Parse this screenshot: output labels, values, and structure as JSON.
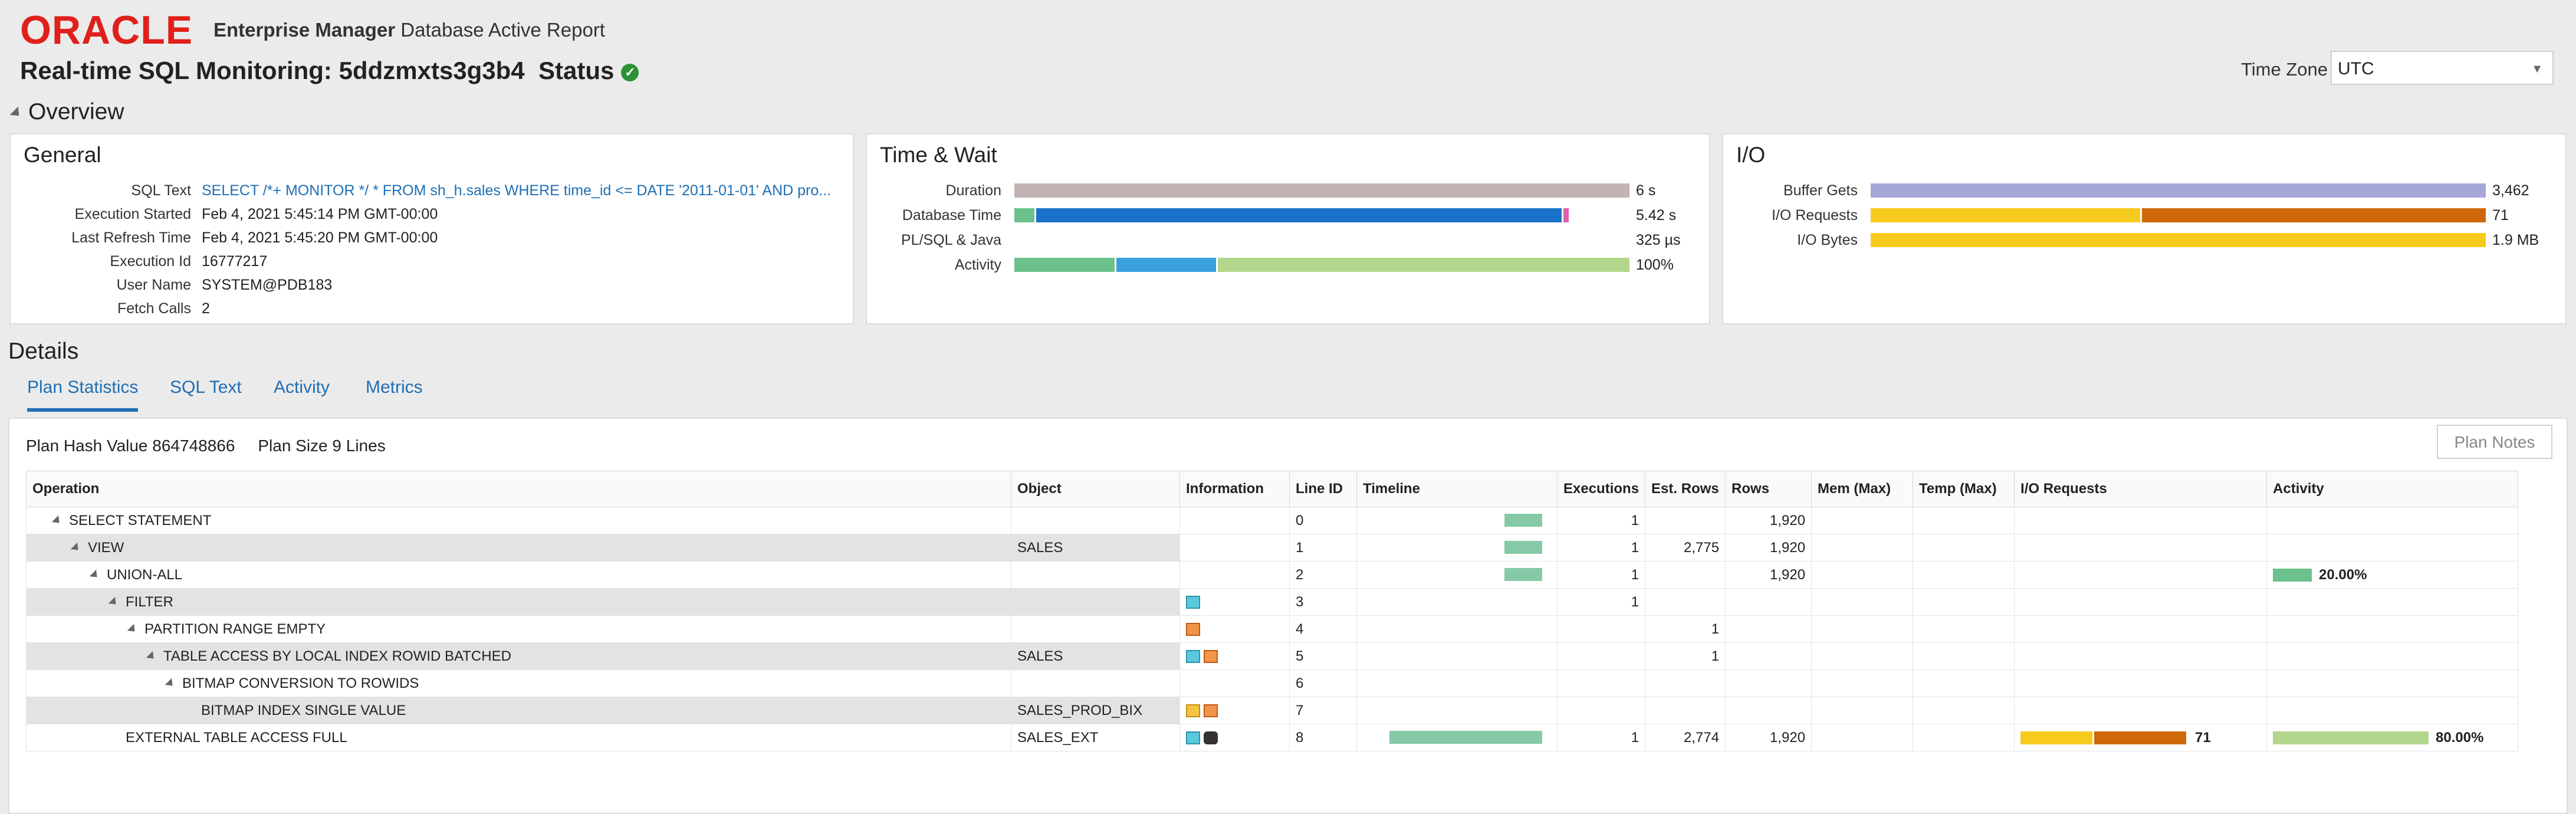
{
  "brand": {
    "logo_text": "ORACLE",
    "product_name": "Enterprise Manager",
    "report_name": "Database Active Report"
  },
  "page": {
    "title": "Real-time SQL Monitoring: 5ddzmxts3g3b4",
    "status_label": "Status",
    "status_icon": "check-circle-icon"
  },
  "timezone": {
    "label": "Time Zone",
    "value": "UTC"
  },
  "overview": {
    "heading": "Overview",
    "general": {
      "title": "General",
      "rows": [
        {
          "label": "SQL Text",
          "value": "SELECT /*+ MONITOR */ * FROM sh_h.sales WHERE time_id <= DATE '2011-01-01' AND pro..."
        },
        {
          "label": "Execution Started",
          "value": "Feb 4, 2021 5:45:14 PM GMT-00:00"
        },
        {
          "label": "Last Refresh Time",
          "value": "Feb 4, 2021 5:45:20 PM GMT-00:00"
        },
        {
          "label": "Execution Id",
          "value": "16777217"
        },
        {
          "label": "User Name",
          "value": "SYSTEM@PDB183"
        },
        {
          "label": "Fetch Calls",
          "value": "2"
        }
      ]
    },
    "time_wait": {
      "title": "Time & Wait",
      "rows": [
        {
          "label": "Duration",
          "value": "6 s",
          "segments": [
            {
              "fraction": 1.0,
              "color": "#c4b3b3"
            }
          ]
        },
        {
          "label": "Database Time",
          "value": "5.42 s",
          "segments": [
            {
              "fraction": 0.035,
              "color": "#6cc08b"
            },
            {
              "fraction": 0.855,
              "color": "#1a73c9"
            },
            {
              "fraction": 0.012,
              "color": "#e05fa8"
            }
          ]
        },
        {
          "label": "PL/SQL & Java",
          "value": "325 µs",
          "segments": []
        },
        {
          "label": "Activity",
          "value": "100%",
          "segments": [
            {
              "fraction": 0.165,
              "color": "#6cc08b"
            },
            {
              "fraction": 0.165,
              "color": "#3aa0de"
            },
            {
              "fraction": 0.67,
              "color": "#b2d68c"
            }
          ]
        }
      ]
    },
    "io": {
      "title": "I/O",
      "rows": [
        {
          "label": "Buffer Gets",
          "value": "3,462",
          "segments": [
            {
              "fraction": 1.0,
              "color": "#a6a6d8"
            }
          ]
        },
        {
          "label": "I/O Requests",
          "value": "71",
          "segments": [
            {
              "fraction": 0.44,
              "color": "#f7cb1e"
            },
            {
              "fraction": 0.56,
              "color": "#cf680a"
            }
          ]
        },
        {
          "label": "I/O Bytes",
          "value": "1.9 MB",
          "segments": [
            {
              "fraction": 1.0,
              "color": "#f7cb1e"
            }
          ]
        }
      ]
    }
  },
  "details": {
    "heading": "Details",
    "tabs": [
      "Plan Statistics",
      "SQL Text",
      "Activity",
      "Metrics"
    ],
    "active_tab": "Plan Statistics",
    "plan_hash_label": "Plan Hash Value 864748866",
    "plan_size_label": "Plan Size 9 Lines",
    "plan_notes_button": "Plan Notes",
    "columns": [
      "Operation",
      "Object",
      "Information",
      "Line ID",
      "Timeline",
      "Executions",
      "Est. Rows",
      "Rows",
      "Mem (Max)",
      "Temp (Max)",
      "I/O Requests",
      "Activity"
    ],
    "rows": [
      {
        "operation": "SELECT STATEMENT",
        "indent": 1,
        "expandable": true,
        "object": "",
        "info": [],
        "line_id": "0",
        "timeline": {
          "start": 0.75,
          "end": 0.95
        },
        "executions": "1",
        "est_rows": "",
        "rows": "1,920",
        "mem": "",
        "temp": "",
        "io": null,
        "activity": null
      },
      {
        "operation": "VIEW",
        "indent": 2,
        "expandable": true,
        "object": "SALES",
        "info": [],
        "line_id": "1",
        "timeline": {
          "start": 0.75,
          "end": 0.95
        },
        "executions": "1",
        "est_rows": "2,775",
        "rows": "1,920",
        "mem": "",
        "temp": "",
        "io": null,
        "activity": null
      },
      {
        "operation": "UNION-ALL",
        "indent": 3,
        "expandable": true,
        "object": "",
        "info": [],
        "line_id": "2",
        "timeline": {
          "start": 0.75,
          "end": 0.95
        },
        "executions": "1",
        "est_rows": "",
        "rows": "1,920",
        "mem": "",
        "temp": "",
        "io": null,
        "activity": {
          "value": "20.00%",
          "fraction": 0.2,
          "color": "#6cc08b"
        }
      },
      {
        "operation": "FILTER",
        "indent": 4,
        "expandable": true,
        "object": "",
        "info": [
          "filter-icon"
        ],
        "line_id": "3",
        "timeline": null,
        "executions": "1",
        "est_rows": "",
        "rows": "",
        "mem": "",
        "temp": "",
        "io": null,
        "activity": null
      },
      {
        "operation": "PARTITION RANGE EMPTY",
        "indent": 5,
        "expandable": true,
        "object": "",
        "info": [
          "partition-icon"
        ],
        "line_id": "4",
        "timeline": null,
        "executions": "",
        "est_rows": "1",
        "rows": "",
        "mem": "",
        "temp": "",
        "io": null,
        "activity": null
      },
      {
        "operation": "TABLE ACCESS BY LOCAL INDEX ROWID BATCHED",
        "indent": 6,
        "expandable": true,
        "object": "SALES",
        "info": [
          "filter-icon",
          "partition-icon"
        ],
        "line_id": "5",
        "timeline": null,
        "executions": "",
        "est_rows": "1",
        "rows": "",
        "mem": "",
        "temp": "",
        "io": null,
        "activity": null
      },
      {
        "operation": "BITMAP CONVERSION TO ROWIDS",
        "indent": 7,
        "expandable": true,
        "object": "",
        "info": [],
        "line_id": "6",
        "timeline": null,
        "executions": "",
        "est_rows": "",
        "rows": "",
        "mem": "",
        "temp": "",
        "io": null,
        "activity": null
      },
      {
        "operation": "BITMAP INDEX SINGLE VALUE",
        "indent": 8,
        "expandable": false,
        "object": "SALES_PROD_BIX",
        "info": [
          "bitmap-icon",
          "partition-icon"
        ],
        "line_id": "7",
        "timeline": null,
        "executions": "",
        "est_rows": "",
        "rows": "",
        "mem": "",
        "temp": "",
        "io": null,
        "activity": null
      },
      {
        "operation": "EXTERNAL TABLE ACCESS FULL",
        "indent": 4,
        "expandable": false,
        "object": "SALES_EXT",
        "info": [
          "filter-icon",
          "binoculars-icon"
        ],
        "line_id": "8",
        "timeline": {
          "start": 0.14,
          "end": 0.95
        },
        "executions": "1",
        "est_rows": "2,774",
        "rows": "1,920",
        "mem": "",
        "temp": "",
        "io": {
          "value": "71",
          "segments": [
            {
              "fraction": 0.44,
              "color": "#f7cb1e"
            },
            {
              "fraction": 0.56,
              "color": "#cf680a"
            }
          ]
        },
        "activity": {
          "value": "80.00%",
          "fraction": 0.8,
          "color": "#b2d68c"
        }
      }
    ]
  }
}
